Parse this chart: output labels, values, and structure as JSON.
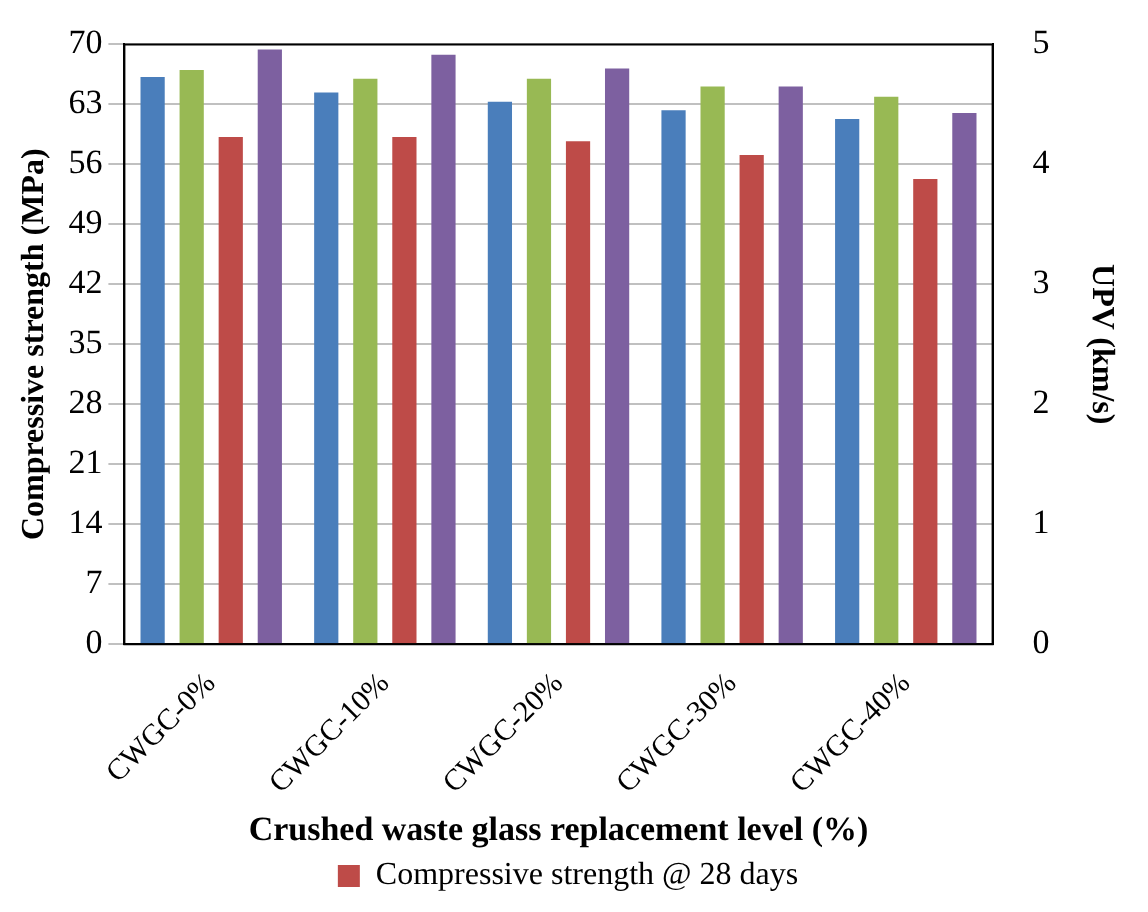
{
  "chart_data": {
    "type": "bar",
    "xlabel": "Crushed waste glass replacement level (%)",
    "ylabel": "Compressive strength (MPa)",
    "y2label": "UPV (km/s)",
    "categories": [
      "CWGC-0%",
      "CWGC-10%",
      "CWGC-20%",
      "CWGC-30%",
      "CWGC-40%"
    ],
    "series": [
      {
        "color": "#4a7ebb",
        "values": [
          66.2,
          64.4,
          63.3,
          62.3,
          61.3
        ]
      },
      {
        "color": "#98b954",
        "values": [
          67.0,
          66.0,
          66.0,
          65.1,
          63.9
        ]
      },
      {
        "name": "Compressive strength @ 28 days",
        "color": "#be4b48",
        "values": [
          59.2,
          59.2,
          58.7,
          57.1,
          54.3
        ]
      },
      {
        "color": "#7d60a0",
        "values": [
          69.4,
          68.8,
          67.2,
          65.1,
          62.0
        ]
      }
    ],
    "ylim": [
      0,
      70
    ],
    "yticks": [
      0,
      7,
      14,
      21,
      28,
      35,
      42,
      49,
      56,
      63,
      70
    ],
    "y2lim": [
      0,
      5
    ],
    "y2ticks": [
      0,
      1,
      2,
      3,
      4,
      5
    ],
    "grid": "y",
    "legend": "bottom"
  }
}
